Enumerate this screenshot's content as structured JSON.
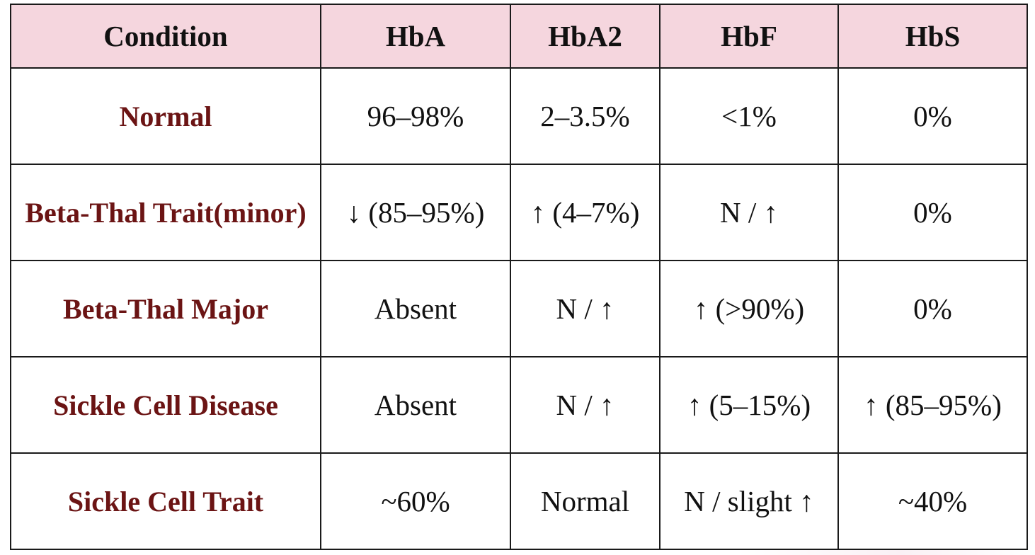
{
  "table": {
    "headers": [
      "Condition",
      "HbA",
      "HbA2",
      "HbF",
      "HbS"
    ],
    "rows": [
      {
        "condition": "Normal",
        "hba": "96–98%",
        "hba2": "2–3.5%",
        "hbf": "<1%",
        "hbs": "0%"
      },
      {
        "condition": "Beta-Thal Trait(minor)",
        "hba": "↓ (85–95%)",
        "hba2": "↑ (4–7%)",
        "hbf": "N / ↑",
        "hbs": "0%"
      },
      {
        "condition": "Beta-Thal Major",
        "hba": "Absent",
        "hba2": "N / ↑",
        "hbf": "↑ (>90%)",
        "hbs": "0%"
      },
      {
        "condition": "Sickle Cell Disease",
        "hba": "Absent",
        "hba2": "N / ↑",
        "hbf": "↑ (5–15%)",
        "hbs": "↑ (85–95%)"
      },
      {
        "condition": "Sickle Cell Trait",
        "hba": "~60%",
        "hba2": "Normal",
        "hbf": "N / slight ↑",
        "hbs": "~40%"
      }
    ]
  },
  "colors": {
    "header_background": "#f5d6de",
    "condition_text": "#6b1414",
    "value_text": "#111111",
    "border": "#1a1a1a"
  }
}
